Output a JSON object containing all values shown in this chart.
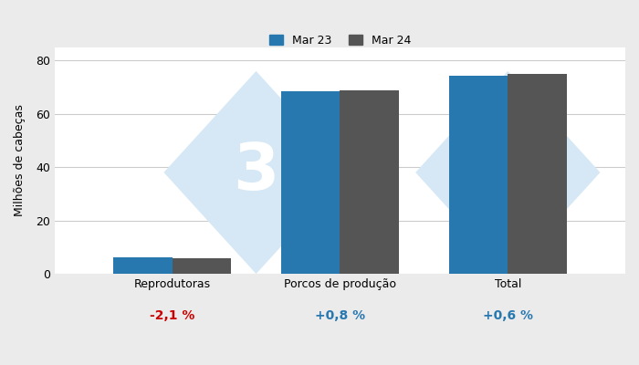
{
  "categories": [
    "Reprodutoras",
    "Porcos de produção",
    "Total"
  ],
  "mar23_values": [
    6.1,
    68.3,
    74.4
  ],
  "mar24_values": [
    5.97,
    68.85,
    74.85
  ],
  "pct_changes": [
    "-2,1 %",
    "+0,8 %",
    "+0,6 %"
  ],
  "pct_colors": [
    "#cc0000",
    "#2878b0",
    "#2878b0"
  ],
  "bar_color_mar23": "#2878b0",
  "bar_color_mar24": "#555555",
  "ylabel": "Milhões de cabeças",
  "legend_labels": [
    "Mar 23",
    "Mar 24"
  ],
  "ylim": [
    0,
    85
  ],
  "yticks": [
    0,
    20,
    40,
    60,
    80
  ],
  "background_color": "#ebebeb",
  "plot_bg_color": "#ffffff",
  "grid_color": "#cccccc",
  "watermark_color": "#d6e8f5",
  "watermark_text_color": "#ffffff",
  "bar_width": 0.35
}
